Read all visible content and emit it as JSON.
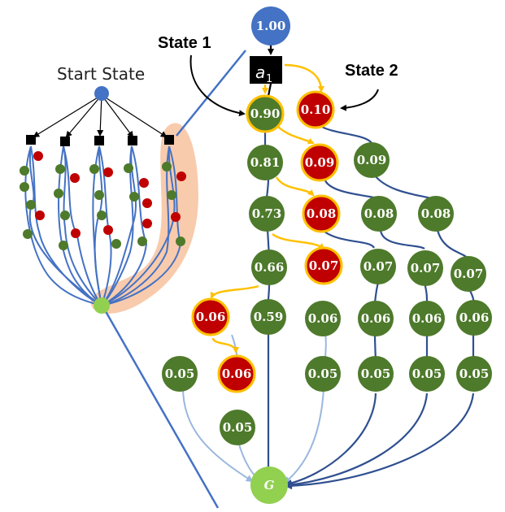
{
  "labels": {
    "start_state": "Start State",
    "state_1": "State 1",
    "state_2": "State 2",
    "action": "a",
    "action_subscript": "1"
  },
  "nodes": {
    "root": "1.00",
    "n090": "0.90",
    "n010": "0.10",
    "n081": "0.81",
    "n009r": "0.09",
    "n009g": "0.09",
    "n073": "0.73",
    "n008r": "0.08",
    "n008a": "0.08",
    "n008b": "0.08",
    "n066": "0.66",
    "n007r": "0.07",
    "n007a": "0.07",
    "n007b": "0.07",
    "n007c": "0.07",
    "n006r1": "0.06",
    "n059": "0.59",
    "n006a": "0.06",
    "n006b": "0.06",
    "n006c": "0.06",
    "n006d": "0.06",
    "n005a": "0.05",
    "n006r2": "0.06",
    "n005b": "0.05",
    "n005c": "0.05",
    "n005d": "0.05",
    "n005e": "0.05",
    "n005f": "0.05",
    "goal": "G"
  },
  "colors": {
    "green_node": "#4e7a2b",
    "red_node": "#c00000",
    "gold_ring": "#ffc000",
    "blue_node": "#4472c4",
    "goal_node": "#92d050",
    "dark_edge": "#2f4f8f",
    "light_edge": "#9ab7df",
    "gold_edge": "#ffc000",
    "highlight": "#f8cbad"
  }
}
